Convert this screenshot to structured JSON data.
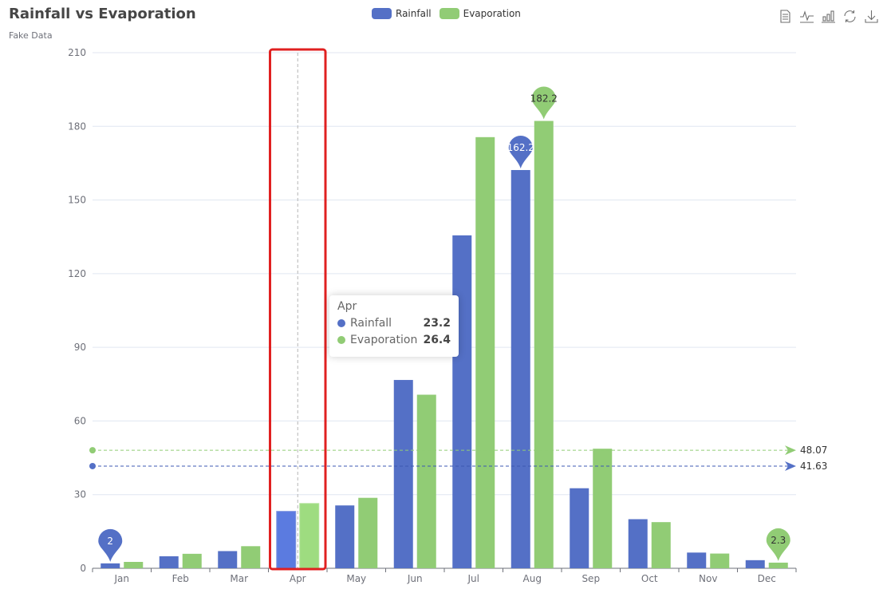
{
  "header": {
    "title": "Rainfall vs Evaporation",
    "subtitle": "Fake Data"
  },
  "legend": [
    {
      "name": "Rainfall",
      "color": "#5470c6"
    },
    {
      "name": "Evaporation",
      "color": "#91cc75"
    }
  ],
  "toolbox": [
    {
      "name": "data-view-icon"
    },
    {
      "name": "line-chart-icon"
    },
    {
      "name": "bar-chart-icon"
    },
    {
      "name": "restore-icon"
    },
    {
      "name": "download-icon"
    }
  ],
  "tooltip": {
    "category": "Apr",
    "rows": [
      {
        "name": "Rainfall",
        "value": "23.2",
        "color": "#5470c6"
      },
      {
        "name": "Evaporation",
        "value": "26.4",
        "color": "#91cc75"
      }
    ]
  },
  "highlight": {
    "category": "Apr",
    "color": "#e02020"
  },
  "chart_data": {
    "type": "bar",
    "title": "Rainfall vs Evaporation",
    "subtitle": "Fake Data",
    "xlabel": "",
    "ylabel": "",
    "categories": [
      "Jan",
      "Feb",
      "Mar",
      "Apr",
      "May",
      "Jun",
      "Jul",
      "Aug",
      "Sep",
      "Oct",
      "Nov",
      "Dec"
    ],
    "series": [
      {
        "name": "Rainfall",
        "color": "#5470c6",
        "values": [
          2.0,
          4.9,
          7.0,
          23.2,
          25.6,
          76.7,
          135.6,
          162.2,
          32.6,
          20.0,
          6.4,
          3.3
        ],
        "mark_points": [
          {
            "type": "min",
            "label": "2",
            "index": 0
          },
          {
            "type": "max",
            "label": "162.2",
            "index": 7
          }
        ],
        "mark_line": {
          "type": "average",
          "label": "41.63",
          "value": 41.63
        }
      },
      {
        "name": "Evaporation",
        "color": "#91cc75",
        "values": [
          2.6,
          5.9,
          9.0,
          26.4,
          28.7,
          70.7,
          175.6,
          182.2,
          48.7,
          18.8,
          6.0,
          2.3
        ],
        "mark_points": [
          {
            "type": "max",
            "label": "182.2",
            "index": 7
          },
          {
            "type": "min",
            "label": "2.3",
            "index": 11
          }
        ],
        "mark_line": {
          "type": "average",
          "label": "48.07",
          "value": 48.07
        }
      }
    ],
    "yticks": [
      "0",
      "30",
      "60",
      "90",
      "120",
      "150",
      "180",
      "210"
    ],
    "ylim": [
      0,
      210
    ],
    "grid": true,
    "legend_position": "top-center"
  }
}
